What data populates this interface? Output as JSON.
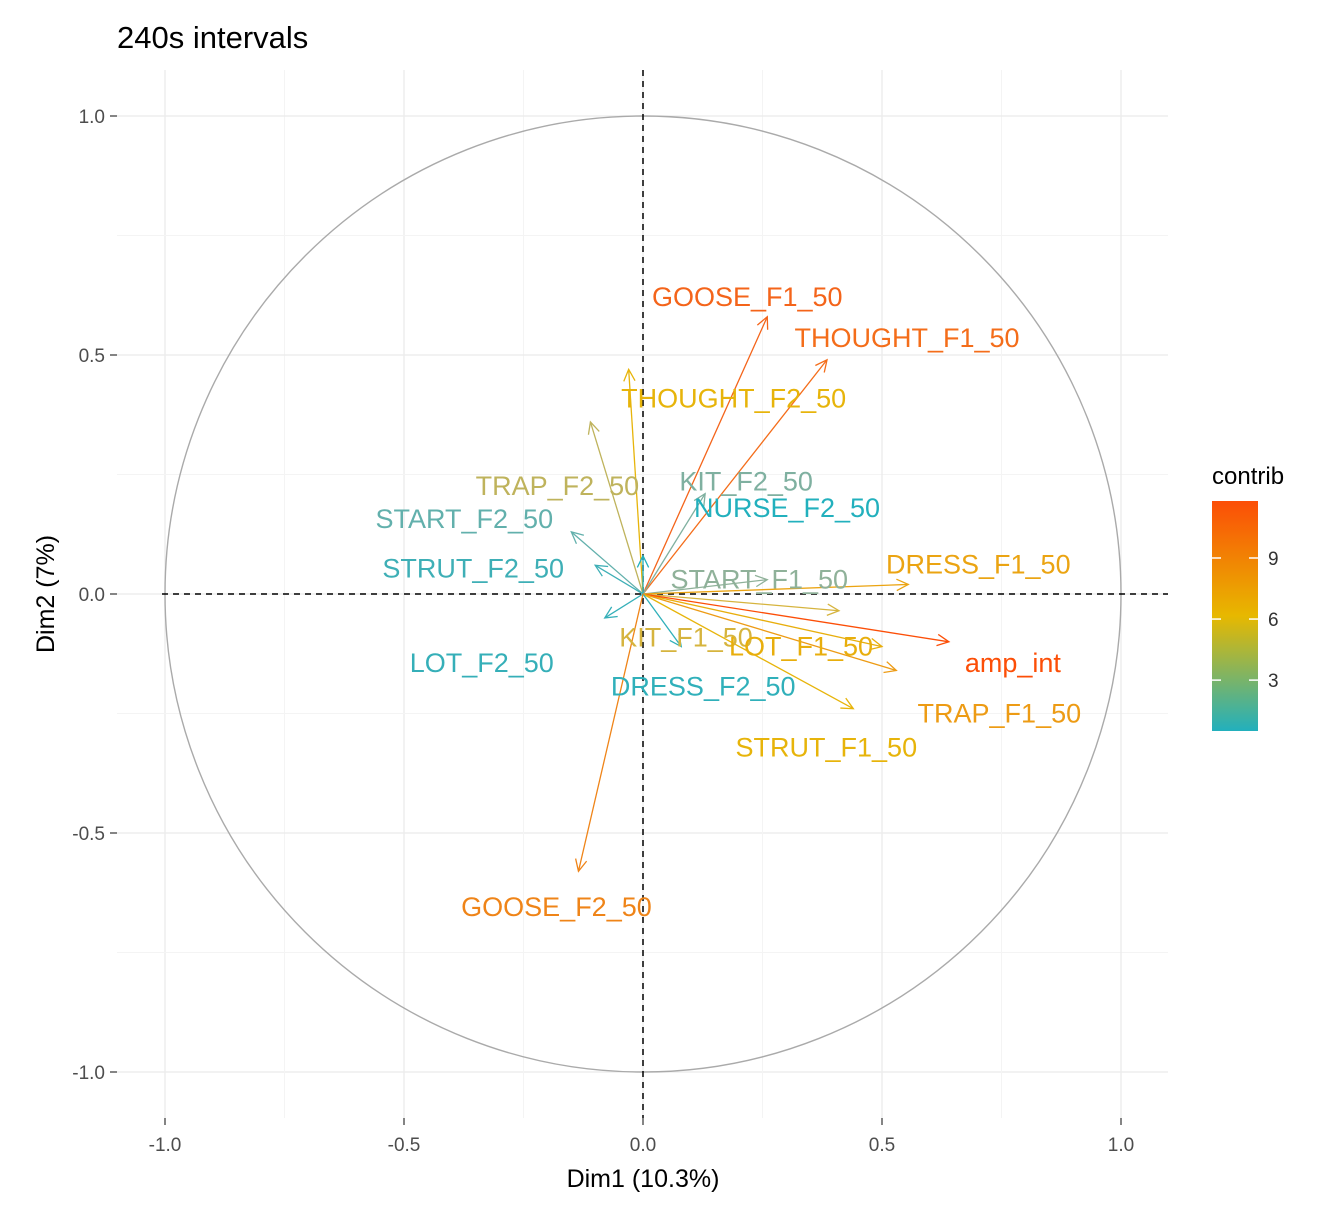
{
  "chart_data": {
    "type": "pca-correlation-circle",
    "title": "240s intervals",
    "xlabel": "Dim1 (10.3%)",
    "ylabel": "Dim2 (7%)",
    "xlim": [
      -1.0,
      1.0
    ],
    "ylim": [
      -1.0,
      1.0
    ],
    "x_ticks": [
      -1.0,
      -0.5,
      0.0,
      0.5,
      1.0
    ],
    "x_tick_labels": [
      "-1.0",
      "-0.5",
      "0.0",
      "0.5",
      "1.0"
    ],
    "y_ticks": [
      -1.0,
      -0.5,
      0.0,
      0.5,
      1.0
    ],
    "y_tick_labels": [
      "-1.0",
      "-0.5",
      "0.0",
      "0.5",
      "1.0"
    ],
    "grid": true,
    "unit_circle": true,
    "reference_lines": {
      "x": 0,
      "y": 0,
      "style": "dashed"
    },
    "legend": {
      "title": "contrib",
      "placement": "right",
      "range": [
        0.5,
        11.8
      ],
      "ticks": [
        3,
        6,
        9
      ],
      "tick_labels": [
        "3",
        "6",
        "9"
      ],
      "colors": {
        "low": "#22B0BD",
        "mid": "#E7B800",
        "high": "#FC4E07"
      }
    },
    "variables": [
      {
        "name": "GOOSE_F1_50",
        "x": 0.26,
        "y": 0.58,
        "contrib": 9.8,
        "color": "#F4641A"
      },
      {
        "name": "THOUGHT_F1_50",
        "x": 0.385,
        "y": 0.49,
        "contrib": 9.5,
        "color": "#F46D1A"
      },
      {
        "name": "THOUGHT_F2_50",
        "x": -0.03,
        "y": 0.47,
        "contrib": 6.1,
        "color": "#E7B40A"
      },
      {
        "name": "TRAP_F2_50",
        "x": -0.11,
        "y": 0.36,
        "contrib": 3.6,
        "color": "#BFB35C"
      },
      {
        "name": "KIT_F2_50",
        "x": 0.13,
        "y": 0.21,
        "contrib": 1.9,
        "color": "#7FB0A0"
      },
      {
        "name": "START_F2_50",
        "x": -0.15,
        "y": 0.13,
        "contrib": 1.2,
        "color": "#62B0AC"
      },
      {
        "name": "NURSE_F2_50",
        "x": 0.0,
        "y": 0.08,
        "contrib": 0.5,
        "color": "#22B0BD"
      },
      {
        "name": "STRUT_F2_50",
        "x": -0.1,
        "y": 0.06,
        "contrib": 0.7,
        "color": "#3EAFB6"
      },
      {
        "name": "LOT_F2_50",
        "x": -0.08,
        "y": -0.05,
        "contrib": 0.6,
        "color": "#35AFB8"
      },
      {
        "name": "START_F1_50",
        "x": 0.26,
        "y": 0.03,
        "contrib": 2.3,
        "color": "#8FB199"
      },
      {
        "name": "DRESS_F1_50",
        "x": 0.555,
        "y": 0.02,
        "contrib": 7.4,
        "color": "#EBA412"
      },
      {
        "name": "KIT_F1_50",
        "x": 0.41,
        "y": -0.035,
        "contrib": 4.5,
        "color": "#D6B43E"
      },
      {
        "name": "LOT_F1_50",
        "x": 0.5,
        "y": -0.11,
        "contrib": 6.8,
        "color": "#E8AE0C"
      },
      {
        "name": "amp_int",
        "x": 0.64,
        "y": -0.1,
        "contrib": 11.6,
        "color": "#FC4E07"
      },
      {
        "name": "TRAP_F1_50",
        "x": 0.53,
        "y": -0.16,
        "contrib": 7.8,
        "color": "#ED9B14"
      },
      {
        "name": "STRUT_F1_50",
        "x": 0.44,
        "y": -0.24,
        "contrib": 6.2,
        "color": "#E7B40A"
      },
      {
        "name": "DRESS_F2_50",
        "x": 0.08,
        "y": -0.11,
        "contrib": 0.9,
        "color": "#30B0BA"
      },
      {
        "name": "GOOSE_F2_50",
        "x": -0.135,
        "y": -0.58,
        "contrib": 8.4,
        "color": "#EF8418"
      }
    ]
  }
}
